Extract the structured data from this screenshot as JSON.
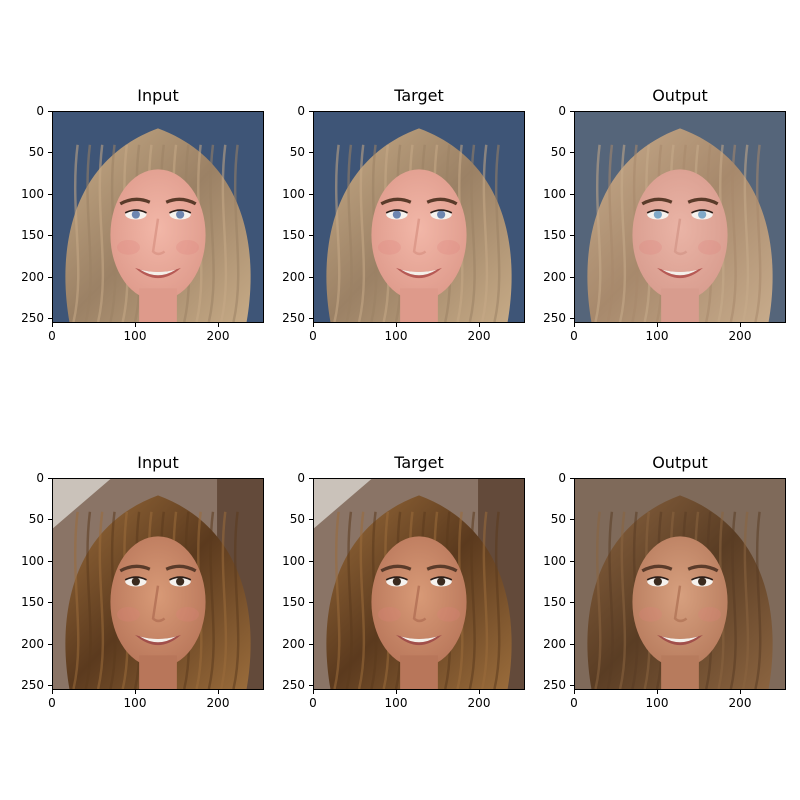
{
  "figure": {
    "rows": [
      {
        "panels": [
          {
            "title": "Input",
            "kind": "woman1-input"
          },
          {
            "title": "Target",
            "kind": "woman1-target"
          },
          {
            "title": "Output",
            "kind": "woman1-output"
          }
        ]
      },
      {
        "panels": [
          {
            "title": "Input",
            "kind": "woman2-input"
          },
          {
            "title": "Target",
            "kind": "woman2-target"
          },
          {
            "title": "Output",
            "kind": "woman2-output"
          }
        ]
      }
    ],
    "y_ticks": [
      "0",
      "50",
      "100",
      "150",
      "200",
      "250"
    ],
    "x_ticks": [
      "0",
      "100",
      "200"
    ],
    "y_tick_values": [
      0,
      50,
      100,
      150,
      200,
      250
    ],
    "x_tick_values": [
      0,
      100,
      200
    ],
    "image_extent": 256
  }
}
